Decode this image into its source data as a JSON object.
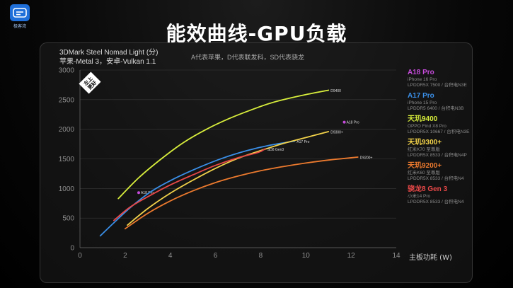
{
  "header": {
    "title": "能效曲线-GPU负载",
    "logo_text": "极客湾"
  },
  "chart_data": {
    "type": "line",
    "title": "3DMark Steel Nomad Light (分)",
    "subtitle": "苹果-Metal 3，安卓-Vulkan 1.1",
    "note": "A代表苹果，D代表联发科，SD代表骁龙",
    "xlabel": "主板功耗 (W)",
    "ylabel": "",
    "xlim": [
      0,
      14
    ],
    "ylim": [
      0,
      3000
    ],
    "x_ticks": [
      "0",
      "2",
      "4",
      "6",
      "8",
      "10",
      "12",
      "14"
    ],
    "y_ticks": [
      "0",
      "500",
      "1000",
      "1500",
      "2000",
      "2500",
      "3000"
    ],
    "badge": [
      "左上",
      "更好"
    ],
    "series": [
      {
        "name": "A18 Pro",
        "color": "#c44bd9",
        "label": "A18 Pro",
        "points": [
          [
            2.6,
            930
          ],
          [
            11.7,
            2120
          ]
        ]
      },
      {
        "name": "A17 Pro",
        "color": "#3a8fe8",
        "label": "A17 Pro",
        "points": [
          [
            0.9,
            200
          ],
          [
            1.5,
            420
          ],
          [
            2.3,
            700
          ],
          [
            3.2,
            960
          ],
          [
            4.2,
            1170
          ],
          [
            5.3,
            1360
          ],
          [
            6.3,
            1510
          ],
          [
            7.4,
            1640
          ],
          [
            8.4,
            1730
          ],
          [
            9.5,
            1800
          ]
        ]
      },
      {
        "name": "天玑9400",
        "color": "#d8ee3c",
        "label": "D9400",
        "points": [
          [
            1.7,
            830
          ],
          [
            2.6,
            1180
          ],
          [
            3.6,
            1500
          ],
          [
            4.6,
            1780
          ],
          [
            5.6,
            2000
          ],
          [
            6.6,
            2180
          ],
          [
            7.6,
            2330
          ],
          [
            8.6,
            2460
          ],
          [
            9.8,
            2570
          ],
          [
            11.0,
            2660
          ]
        ]
      },
      {
        "name": "天玑9300+",
        "color": "#f2d24a",
        "label": "D9300+",
        "points": [
          [
            2.1,
            380
          ],
          [
            3.0,
            660
          ],
          [
            4.0,
            920
          ],
          [
            5.0,
            1140
          ],
          [
            6.0,
            1340
          ],
          [
            7.0,
            1510
          ],
          [
            8.0,
            1640
          ],
          [
            9.0,
            1760
          ],
          [
            10.0,
            1860
          ],
          [
            11.0,
            1960
          ]
        ]
      },
      {
        "name": "天玑9200+",
        "color": "#ec7a2e",
        "label": "D9200+",
        "points": [
          [
            2.0,
            320
          ],
          [
            3.0,
            580
          ],
          [
            4.0,
            790
          ],
          [
            5.0,
            960
          ],
          [
            6.0,
            1100
          ],
          [
            7.0,
            1210
          ],
          [
            8.0,
            1300
          ],
          [
            9.0,
            1370
          ],
          [
            10.0,
            1430
          ],
          [
            11.0,
            1480
          ],
          [
            12.3,
            1530
          ]
        ]
      },
      {
        "name": "骁龙8 Gen 3",
        "color": "#e84848",
        "label": "SD8 Gen3",
        "points": [
          [
            1.5,
            460
          ],
          [
            2.2,
            680
          ],
          [
            3.0,
            860
          ],
          [
            4.0,
            1060
          ],
          [
            5.0,
            1230
          ],
          [
            6.0,
            1390
          ],
          [
            7.0,
            1520
          ],
          [
            7.9,
            1610
          ],
          [
            8.2,
            1670
          ]
        ]
      }
    ]
  },
  "legend": [
    {
      "name": "A18 Pro",
      "color": "#c44bd9",
      "line1": "iPhone 16 Pro",
      "line2": "LPDDR5X 7500 / 台积电N3E"
    },
    {
      "name": "A17 Pro",
      "color": "#3a8fe8",
      "line1": "iPhone 15 Pro",
      "line2": "LPDDR5 6400 / 台积电N3B"
    },
    {
      "name": "天玑9400",
      "color": "#d8ee3c",
      "line1": "OPPO Find X8 Pro",
      "line2": "LPDDR5X 10667 / 台积电N3E"
    },
    {
      "name": "天玑9300+",
      "color": "#f2d24a",
      "line1": "红米K70 至尊版",
      "line2": "LPDDR5X 8533 / 台积电N4P"
    },
    {
      "name": "天玑9200+",
      "color": "#ec7a2e",
      "line1": "红米K60 至尊版",
      "line2": "LPDDR5X 8533 / 台积电N4"
    },
    {
      "name": "骁龙8 Gen 3",
      "color": "#e84848",
      "line1": "小米14 Pro",
      "line2": "LPDDR5X 8533 / 台积电N4"
    }
  ]
}
